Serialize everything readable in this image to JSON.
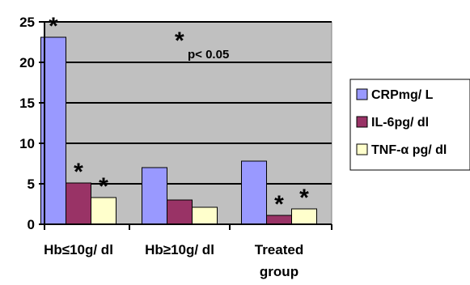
{
  "chart_data": {
    "type": "bar",
    "title": "",
    "xlabel": "",
    "ylabel": "",
    "ylim": [
      0,
      25
    ],
    "yticks": [
      0,
      5,
      10,
      15,
      20,
      25
    ],
    "ytick_labels": [
      "0",
      "5",
      "10",
      "15",
      "20",
      "25"
    ],
    "grid": true,
    "legend_position": "right",
    "categories": [
      [
        "Hb≤10g/ dl"
      ],
      [
        "Hb≥10g/ dl"
      ],
      [
        "Treated",
        "group"
      ]
    ],
    "series": [
      {
        "name": "CRPmg/ L",
        "color": "#9999ff",
        "values": [
          23.1,
          7.0,
          7.8
        ],
        "stars": [
          true,
          false,
          false
        ]
      },
      {
        "name": "IL-6pg/ dl",
        "color": "#993366",
        "values": [
          5.1,
          3.0,
          1.1
        ],
        "stars": [
          true,
          false,
          true
        ]
      },
      {
        "name": "TNF-α pg/ dl",
        "color": "#ffffcc",
        "values": [
          3.3,
          2.1,
          1.9
        ],
        "stars": [
          true,
          false,
          true
        ]
      }
    ],
    "annotation": {
      "star": "*",
      "text": "p< 0.05"
    },
    "plot_background": "#c0c0c0"
  }
}
